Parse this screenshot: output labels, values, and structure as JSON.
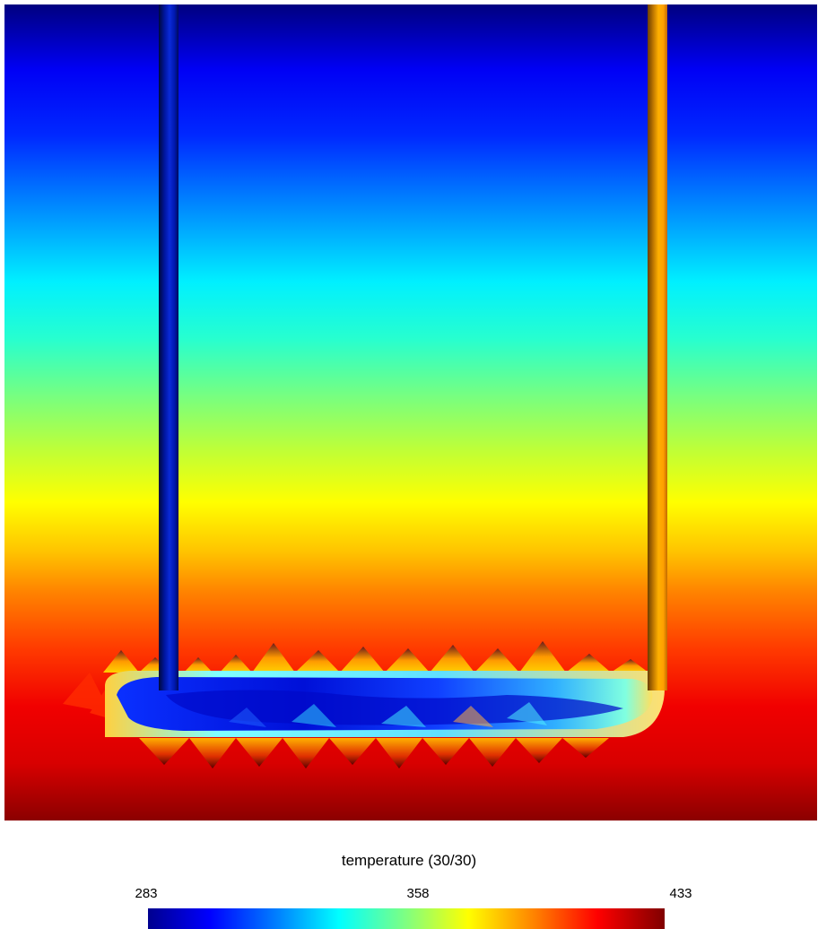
{
  "image": {
    "type": "temperature field visualization",
    "colormap": "jet",
    "legend": {
      "title": "temperature (30/30)",
      "min": "283",
      "mid": "358",
      "max": "433"
    }
  },
  "colors": {
    "low": "#00008f",
    "mid": "#ffff00",
    "high": "#800000"
  }
}
